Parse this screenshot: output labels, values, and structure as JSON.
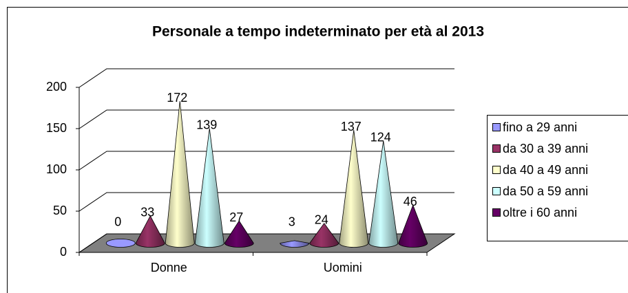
{
  "chart_data": {
    "type": "cone3d",
    "title": "Personale a tempo indeterminato per età al 2013",
    "categories": [
      "Donne",
      "Uomini"
    ],
    "series": [
      {
        "name": "fino a 29 anni",
        "color": "#9999ff",
        "values": [
          0,
          3
        ]
      },
      {
        "name": "da 30 a 39 anni",
        "color": "#993366",
        "values": [
          33,
          24
        ]
      },
      {
        "name": "da 40 a 49 anni",
        "color": "#ffffcc",
        "values": [
          172,
          137
        ]
      },
      {
        "name": "da 50 a 59 anni",
        "color": "#ccffff",
        "values": [
          139,
          124
        ]
      },
      {
        "name": "oltre i 60 anni",
        "color": "#660066",
        "values": [
          27,
          46
        ]
      }
    ],
    "ylim": [
      0,
      200
    ],
    "yticks": [
      0,
      50,
      100,
      150,
      200
    ],
    "grid": true,
    "legend": "right"
  }
}
